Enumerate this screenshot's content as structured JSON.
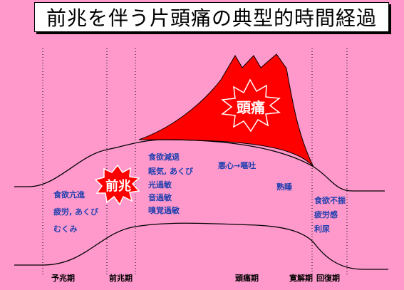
{
  "title": "前兆を伴う片頭痛の典型的時間経過",
  "badges": {
    "prodrome": "前兆",
    "headache": "頭痛"
  },
  "symptoms": {
    "premonitory": [
      "食欲亢進",
      "疲労, あくび",
      "むくみ"
    ],
    "aura": [
      "食欲減退",
      "眠気, あくび",
      "光過敏",
      "音過敏",
      "嗅覚過敏"
    ],
    "headache_phase": [
      "悪心→嘔吐",
      "熟睡"
    ],
    "recovery": [
      "食欲不振",
      "疲労感",
      "利尿"
    ]
  },
  "phases": [
    "予兆期",
    "前兆期",
    "頭痛期",
    "寛解期",
    "回復期"
  ],
  "colors": {
    "background": "#ff99cc",
    "headache_fill": "#ff0000",
    "text_blue": "#1f3fae",
    "badge_text": "#ffffff"
  }
}
